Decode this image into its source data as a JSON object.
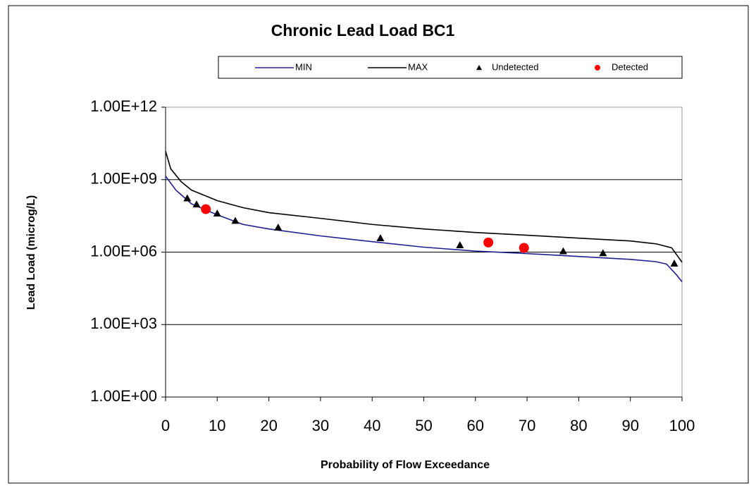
{
  "chart_data": {
    "type": "line",
    "title": "Chronic Lead Load BC1",
    "xlabel": "Probability of  Flow Exceedance",
    "ylabel": "Lead Load (microg/L)",
    "xlim": [
      0,
      100
    ],
    "xticks": [
      0,
      10,
      20,
      30,
      40,
      50,
      60,
      70,
      80,
      90,
      100
    ],
    "ylim": [
      1,
      1000000000000
    ],
    "yscale": "log",
    "yticks": [
      {
        "value": 1,
        "label": "1.00E+00"
      },
      {
        "value": 1000,
        "label": "1.00E+03"
      },
      {
        "value": 1000000,
        "label": "1.00E+06"
      },
      {
        "value": 1000000000,
        "label": "1.00E+09"
      },
      {
        "value": 1000000000000,
        "label": "1.00E+12"
      }
    ],
    "grid": true,
    "legend": "top",
    "series": [
      {
        "name": "MIN",
        "style": "line",
        "color": "#1f1f8f",
        "x": [
          0,
          2,
          5,
          10,
          15,
          20,
          30,
          40,
          50,
          60,
          70,
          80,
          90,
          95,
          97,
          99,
          100
        ],
        "values": [
          1400000000,
          370000000,
          100000000,
          35000000,
          14000000,
          9100000,
          4700000,
          2700000,
          1600000,
          1100000,
          870000,
          660000,
          500000,
          400000,
          320000,
          110000,
          59000
        ]
      },
      {
        "name": "MAX",
        "style": "line",
        "color": "#000000",
        "x": [
          0,
          1,
          3,
          5,
          10,
          15,
          20,
          30,
          40,
          50,
          60,
          70,
          80,
          90,
          95,
          98,
          100
        ],
        "values": [
          15000000000,
          2800000000,
          830000000,
          370000000,
          135000000,
          69000000,
          43000000,
          25000000,
          14000000,
          9100000,
          6500000,
          5000000,
          3800000,
          2900000,
          2200000,
          1500000,
          380000
        ]
      },
      {
        "name": "Undetected",
        "style": "triangle",
        "color": "#000000",
        "x": [
          4.2,
          6,
          10,
          13.5,
          21.8,
          41.6,
          57,
          77,
          84.7,
          98.5
        ],
        "values": [
          170000000,
          95000000,
          40000000,
          20000000,
          10500000,
          3800000,
          1950000,
          1100000,
          910000,
          340000
        ]
      },
      {
        "name": "Detected",
        "style": "circle",
        "color": "#ff0000",
        "x": [
          7.8,
          62.5,
          69.4
        ],
        "values": [
          60000000,
          2500000,
          1500000
        ]
      }
    ]
  }
}
